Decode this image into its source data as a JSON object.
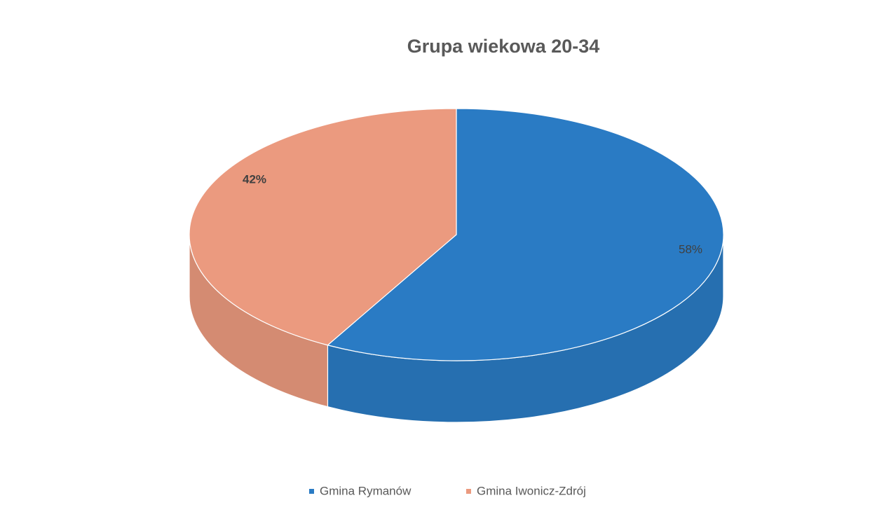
{
  "chart_data": {
    "type": "pie",
    "title": "Grupa wiekowa 20-34",
    "categories": [
      "Gmina Rymanów",
      "Gmina Iwonicz-Zdrój"
    ],
    "values": [
      58,
      42
    ],
    "value_labels": [
      "58%",
      "42%"
    ],
    "colors": [
      "#2a7bc4",
      "#eb9a7f"
    ]
  }
}
